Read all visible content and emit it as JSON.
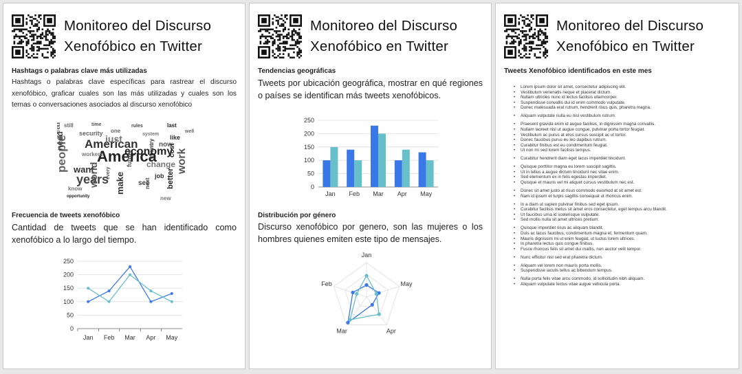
{
  "header": {
    "title": "Monitoreo del Discurso Xenofóbico en Twitter"
  },
  "panel1": {
    "section1": {
      "title": "Hashtags o palabras clave más utilizadas",
      "description": "Hashtags o palabras clave específicas para rastrear el discurso xenofóbico, graficar cuales son las más utilizadas y cuales son los temas o conversaciones asociados al discurso xenofóbico"
    },
    "wordcloud": {
      "words": [
        {
          "t": "America"
        },
        {
          "t": "American"
        },
        {
          "t": "years"
        },
        {
          "t": "work"
        },
        {
          "t": "people"
        },
        {
          "t": "just"
        },
        {
          "t": "economy"
        },
        {
          "t": "want"
        },
        {
          "t": "need"
        },
        {
          "t": "world"
        },
        {
          "t": "year"
        },
        {
          "t": "change"
        },
        {
          "t": "better"
        },
        {
          "t": "make"
        },
        {
          "t": "even"
        },
        {
          "t": "now"
        },
        {
          "t": "security"
        },
        {
          "t": "workers"
        },
        {
          "t": "cost"
        },
        {
          "t": "job"
        },
        {
          "t": "see"
        },
        {
          "t": "future"
        },
        {
          "t": "still"
        },
        {
          "t": "know"
        },
        {
          "t": "last"
        },
        {
          "t": "like"
        },
        {
          "t": "next"
        },
        {
          "t": "every"
        },
        {
          "t": "one"
        },
        {
          "t": "system"
        },
        {
          "t": "opportunity"
        },
        {
          "t": "country"
        },
        {
          "t": "rules"
        },
        {
          "t": "time"
        },
        {
          "t": "well"
        },
        {
          "t": "new"
        }
      ]
    },
    "section2": {
      "title": "Frecuencia de tweets xenofóbico",
      "description": "Cantidad de tweets que se han identificado como xenofóbico a lo largo del tiempo."
    }
  },
  "panel2": {
    "section1": {
      "title": "Tendencias geográficas",
      "description": "Tweets por ubicación geográfica, mostrar en qué regiones o países se identifican más tweets xenofóbicos."
    },
    "section2": {
      "title": "Distribución por género",
      "description": "Discurso xenofóbico por genero, son las mujeres o los hombres quienes emiten este tipo de mensajes."
    }
  },
  "panel3": {
    "title": "Tweets Xenofóbico identificados en este mes",
    "groups": [
      [
        "Lorem ipsum dolor sit amet, consectetur adipiscing elit.",
        "Vestibulum venenatis neque et placerat dictum.",
        "Nullam ultricies nunc id lectus facilisis ullamcorper.",
        "Suspendisse convallis dui id enim commodo vulputate.",
        "Donec malesuada erat rutrum, hendrerit risus quis, pharetra magna."
      ],
      [
        "Aliquam vulputate nulla eu nisl vestibulum rutrum."
      ],
      [
        "Praesent gravida enim id augue facilisis, in dignissim magna convallis.",
        "Nullam laoreet nisl ut augue congue, pulvinar porta tortor feugiat.",
        "Vestibulum ac purus at eros cursus suscipit ac ut tortor.",
        "Donec faucibus purus eu leo dapibus rutrum.",
        "Curabitur finibus est eu condimentum feugiat.",
        "Ut non mi sed lorem facilisis tempus."
      ],
      [
        "Curabitur hendrerit diam eget lacus imperdiet tincidunt."
      ],
      [
        "Quisque porttitor magna eu lorem suscipit sagittis.",
        "Ut in tellus a augue dictum tincidunt nec vitae enim.",
        "Sed elementum ex in felis egestas imperdiet.",
        "Quisque et mauris vel mi aliquet cursus vestibulum nec est."
      ],
      [
        "Donec sit amet justo at risus commodo euismod at sit amet est.",
        "Nam id ipsum et turpis sagittis consequat ut rhoncus enim."
      ],
      [
        "In a diam ut sapien pulvinar finibus sed eget ipsum.",
        "Curabitur facilisis metus sit amet eros consectetur, eget tempus arcu blandit.",
        "Ut faucibus urna id scelerisque vulputate.",
        "Sed mollis nulla sit amet ultrices pretium."
      ],
      [
        "Quisque imperdiet risus ac aliquam blandit.",
        "Duis ac lacus faucibus, condimentum magna et, fermentum quam.",
        "Mauris dignissim mi ut enim feugiat, ut luctus lorem ultrices.",
        "In pharetra lectus quis congue finibus.",
        "Fusce rhoncus felis sit amet dui mattis, non auctor velit tempor."
      ],
      [
        "Nunc efficitur nisl sed erat pharetra dictum."
      ],
      [
        "Aliquam vel lorem non mauris porta mollis.",
        "Suspendisse iaculis tellus ac bibendum tempus."
      ],
      [
        "Nulla porta felis vitae arcu commodo, id sollicitudin nibh aliquam.",
        "Aliquam vulputate lectus vitae augue vehicula porta."
      ]
    ]
  },
  "chart_data": [
    {
      "type": "line",
      "categories": [
        "Jan",
        "Feb",
        "Mar",
        "Apr",
        "May"
      ],
      "series": [
        {
          "values": [
            100,
            140,
            230,
            100,
            130
          ],
          "color": "#3b78e7"
        },
        {
          "values": [
            150,
            100,
            200,
            140,
            100
          ],
          "color": "#67bfc9"
        }
      ],
      "ylim": [
        0,
        250
      ],
      "yticks": [
        0,
        50,
        100,
        150,
        200,
        250
      ],
      "grid": true
    },
    {
      "type": "bar",
      "categories": [
        "Jan",
        "Feb",
        "Mar",
        "Apr",
        "May"
      ],
      "series": [
        {
          "values": [
            100,
            140,
            230,
            100,
            130
          ],
          "color": "#3b78e7"
        },
        {
          "values": [
            150,
            100,
            200,
            140,
            100
          ],
          "color": "#67bfc9"
        }
      ],
      "ylim": [
        0,
        250
      ],
      "yticks": [
        0,
        50,
        100,
        150,
        200,
        250
      ],
      "grid": true
    },
    {
      "type": "radar",
      "categories": [
        "Jan",
        "May",
        "Apr",
        "Mar",
        "Feb"
      ],
      "series": [
        {
          "values": [
            0.35,
            0.38,
            0.28,
            0.92,
            0.42
          ],
          "color": "#3b78e7"
        },
        {
          "values": [
            0.62,
            0.3,
            0.62,
            0.82,
            0.3
          ],
          "color": "#67bfc9"
        }
      ]
    }
  ]
}
